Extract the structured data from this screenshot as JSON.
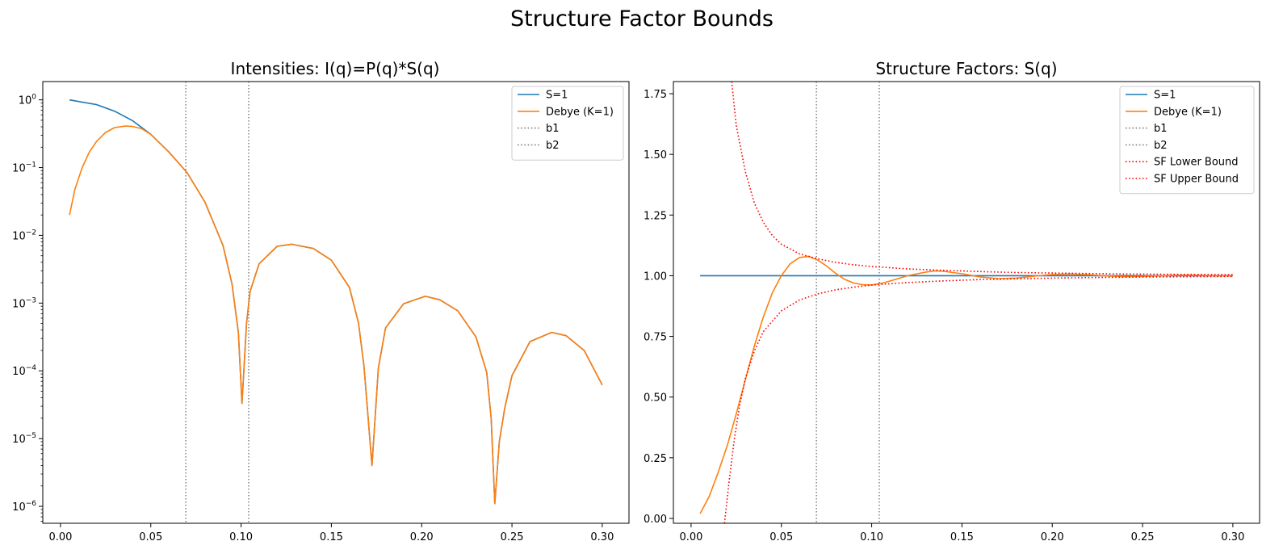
{
  "figure": {
    "title": "Structure Factor Bounds"
  },
  "chart_data": [
    {
      "type": "line",
      "title": "Intensities: I(q)=P(q)*S(q)",
      "xlabel": "",
      "ylabel": "",
      "yscale": "log",
      "xlim": [
        -0.0098,
        0.3148
      ],
      "ylim_log10": [
        -6.25,
        0.27
      ],
      "xticks": [
        0.0,
        0.05,
        0.1,
        0.15,
        0.2,
        0.25,
        0.3
      ],
      "xtick_labels": [
        "0.00",
        "0.05",
        "0.10",
        "0.15",
        "0.20",
        "0.25",
        "0.30"
      ],
      "yticks_log10": [
        0,
        -1,
        -2,
        -3,
        -4,
        -5,
        -6
      ],
      "ytick_bases": [
        "10",
        "10",
        "10",
        "10",
        "10",
        "10",
        "10"
      ],
      "ytick_exponents": [
        "0",
        "−1",
        "−2",
        "−3",
        "−4",
        "−5",
        "−6"
      ],
      "grid": false,
      "legend_position": "top-right",
      "vlines": [
        {
          "name": "b1",
          "x": 0.0694,
          "color": "#808080",
          "style": "dotted"
        },
        {
          "name": "b2",
          "x": 0.1042,
          "color": "#808080",
          "style": "dotted"
        }
      ],
      "series": [
        {
          "name": "S=1",
          "color": "#1f77b4",
          "style": "solid",
          "points": [
            [
              0.005,
              1.0
            ],
            [
              0.02,
              0.85
            ],
            [
              0.03,
              0.68
            ],
            [
              0.04,
              0.49
            ],
            [
              0.05,
              0.31
            ],
            [
              0.06,
              0.17
            ],
            [
              0.07,
              0.085
            ],
            [
              0.08,
              0.031
            ],
            [
              0.09,
              0.0071
            ],
            [
              0.095,
              0.0019
            ],
            [
              0.0985,
              0.00037
            ],
            [
              0.1005,
              3.3e-05
            ],
            [
              0.103,
              0.0005
            ],
            [
              0.105,
              0.0015
            ],
            [
              0.11,
              0.0038
            ],
            [
              0.12,
              0.0069
            ],
            [
              0.128,
              0.0074
            ],
            [
              0.14,
              0.0064
            ],
            [
              0.15,
              0.0043
            ],
            [
              0.16,
              0.0017
            ],
            [
              0.165,
              0.00051
            ],
            [
              0.168,
              0.00012
            ],
            [
              0.1725,
              4e-06
            ],
            [
              0.176,
              0.00011
            ],
            [
              0.18,
              0.00043
            ],
            [
              0.19,
              0.00098
            ],
            [
              0.202,
              0.00126
            ],
            [
              0.21,
              0.00112
            ],
            [
              0.22,
              0.00077
            ],
            [
              0.23,
              0.00032
            ],
            [
              0.236,
              9.5e-05
            ],
            [
              0.2385,
              2e-05
            ],
            [
              0.2405,
              1.1e-06
            ],
            [
              0.243,
              9e-06
            ],
            [
              0.246,
              2.8e-05
            ],
            [
              0.25,
              8.5e-05
            ],
            [
              0.26,
              0.00027
            ],
            [
              0.272,
              0.00037
            ],
            [
              0.28,
              0.00033
            ],
            [
              0.29,
              0.0002
            ],
            [
              0.3,
              6.2e-05
            ]
          ]
        },
        {
          "name": "Debye (K=1)",
          "color": "#ff7f0e",
          "style": "solid",
          "points": [
            [
              0.005,
              0.02
            ],
            [
              0.008,
              0.048
            ],
            [
              0.012,
              0.1
            ],
            [
              0.016,
              0.17
            ],
            [
              0.02,
              0.245
            ],
            [
              0.025,
              0.33
            ],
            [
              0.03,
              0.39
            ],
            [
              0.036,
              0.41
            ],
            [
              0.04,
              0.405
            ],
            [
              0.045,
              0.375
            ],
            [
              0.05,
              0.31
            ],
            [
              0.06,
              0.17
            ],
            [
              0.07,
              0.085
            ],
            [
              0.08,
              0.031
            ],
            [
              0.09,
              0.0071
            ],
            [
              0.095,
              0.0019
            ],
            [
              0.0985,
              0.00037
            ],
            [
              0.1005,
              3.3e-05
            ],
            [
              0.103,
              0.0005
            ],
            [
              0.105,
              0.0015
            ],
            [
              0.11,
              0.0038
            ],
            [
              0.12,
              0.0069
            ],
            [
              0.128,
              0.0074
            ],
            [
              0.14,
              0.0064
            ],
            [
              0.15,
              0.0043
            ],
            [
              0.16,
              0.0017
            ],
            [
              0.165,
              0.00051
            ],
            [
              0.168,
              0.00012
            ],
            [
              0.1725,
              4e-06
            ],
            [
              0.176,
              0.00011
            ],
            [
              0.18,
              0.00043
            ],
            [
              0.19,
              0.00098
            ],
            [
              0.202,
              0.00126
            ],
            [
              0.21,
              0.00112
            ],
            [
              0.22,
              0.00077
            ],
            [
              0.23,
              0.00032
            ],
            [
              0.236,
              9.5e-05
            ],
            [
              0.2385,
              2e-05
            ],
            [
              0.2405,
              1.1e-06
            ],
            [
              0.243,
              9e-06
            ],
            [
              0.246,
              2.8e-05
            ],
            [
              0.25,
              8.5e-05
            ],
            [
              0.26,
              0.00027
            ],
            [
              0.272,
              0.00037
            ],
            [
              0.28,
              0.00033
            ],
            [
              0.29,
              0.0002
            ],
            [
              0.3,
              6.2e-05
            ]
          ]
        }
      ]
    },
    {
      "type": "line",
      "title": "Structure Factors: S(q)",
      "xlabel": "",
      "ylabel": "",
      "yscale": "linear",
      "xlim": [
        -0.0098,
        0.3148
      ],
      "ylim": [
        -0.02,
        1.8
      ],
      "xticks": [
        0.0,
        0.05,
        0.1,
        0.15,
        0.2,
        0.25,
        0.3
      ],
      "xtick_labels": [
        "0.00",
        "0.05",
        "0.10",
        "0.15",
        "0.20",
        "0.25",
        "0.30"
      ],
      "yticks": [
        0.0,
        0.25,
        0.5,
        0.75,
        1.0,
        1.25,
        1.5,
        1.75
      ],
      "ytick_labels": [
        "0.00",
        "0.25",
        "0.50",
        "0.75",
        "1.00",
        "1.25",
        "1.50",
        "1.75"
      ],
      "grid": false,
      "legend_position": "top-right",
      "vlines": [
        {
          "name": "b1",
          "x": 0.0694,
          "color": "#808080",
          "style": "dotted"
        },
        {
          "name": "b2",
          "x": 0.1042,
          "color": "#808080",
          "style": "dotted"
        }
      ],
      "series": [
        {
          "name": "S=1",
          "color": "#1f77b4",
          "style": "solid",
          "points": [
            [
              0.005,
              1.0
            ],
            [
              0.3,
              1.0
            ]
          ]
        },
        {
          "name": "Debye (K=1)",
          "color": "#ff7f0e",
          "style": "solid",
          "points": [
            [
              0.005,
              0.02
            ],
            [
              0.01,
              0.09
            ],
            [
              0.015,
              0.19
            ],
            [
              0.02,
              0.3
            ],
            [
              0.025,
              0.43
            ],
            [
              0.03,
              0.57
            ],
            [
              0.035,
              0.71
            ],
            [
              0.04,
              0.83
            ],
            [
              0.045,
              0.93
            ],
            [
              0.05,
              1.0
            ],
            [
              0.055,
              1.05
            ],
            [
              0.06,
              1.075
            ],
            [
              0.065,
              1.08
            ],
            [
              0.07,
              1.065
            ],
            [
              0.075,
              1.04
            ],
            [
              0.08,
              1.01
            ],
            [
              0.085,
              0.985
            ],
            [
              0.09,
              0.97
            ],
            [
              0.095,
              0.963
            ],
            [
              0.1,
              0.962
            ],
            [
              0.105,
              0.968
            ],
            [
              0.11,
              0.978
            ],
            [
              0.12,
              1.0
            ],
            [
              0.13,
              1.015
            ],
            [
              0.135,
              1.02
            ],
            [
              0.14,
              1.018
            ],
            [
              0.15,
              1.008
            ],
            [
              0.16,
              0.995
            ],
            [
              0.17,
              0.988
            ],
            [
              0.18,
              0.99
            ],
            [
              0.19,
              0.998
            ],
            [
              0.2,
              1.005
            ],
            [
              0.21,
              1.007
            ],
            [
              0.22,
              1.004
            ],
            [
              0.23,
              0.999
            ],
            [
              0.24,
              0.996
            ],
            [
              0.25,
              0.997
            ],
            [
              0.26,
              1.0
            ],
            [
              0.27,
              1.002
            ],
            [
              0.28,
              1.002
            ],
            [
              0.29,
              1.0
            ],
            [
              0.3,
              0.999
            ]
          ]
        },
        {
          "name": "SF Lower Bound",
          "color": "#ff0000",
          "style": "dotted",
          "points": [
            [
              0.0185,
              -0.02
            ],
            [
              0.021,
              0.15
            ],
            [
              0.024,
              0.33
            ],
            [
              0.027,
              0.47
            ],
            [
              0.03,
              0.575
            ],
            [
              0.035,
              0.69
            ],
            [
              0.04,
              0.77
            ],
            [
              0.05,
              0.855
            ],
            [
              0.06,
              0.9
            ],
            [
              0.07,
              0.925
            ],
            [
              0.08,
              0.942
            ],
            [
              0.09,
              0.953
            ],
            [
              0.1,
              0.962
            ],
            [
              0.12,
              0.972
            ],
            [
              0.14,
              0.979
            ],
            [
              0.16,
              0.984
            ],
            [
              0.18,
              0.987
            ],
            [
              0.2,
              0.99
            ],
            [
              0.22,
              0.992
            ],
            [
              0.24,
              0.994
            ],
            [
              0.26,
              0.995
            ],
            [
              0.28,
              0.996
            ],
            [
              0.3,
              0.997
            ]
          ]
        },
        {
          "name": "SF Upper Bound",
          "color": "#ff0000",
          "style": "dotted",
          "points": [
            [
              0.0225,
              1.8
            ],
            [
              0.025,
              1.62
            ],
            [
              0.03,
              1.43
            ],
            [
              0.035,
              1.3
            ],
            [
              0.04,
              1.22
            ],
            [
              0.045,
              1.165
            ],
            [
              0.05,
              1.13
            ],
            [
              0.06,
              1.09
            ],
            [
              0.07,
              1.07
            ],
            [
              0.08,
              1.055
            ],
            [
              0.09,
              1.045
            ],
            [
              0.1,
              1.038
            ],
            [
              0.12,
              1.028
            ],
            [
              0.14,
              1.022
            ],
            [
              0.16,
              1.017
            ],
            [
              0.18,
              1.013
            ],
            [
              0.2,
              1.011
            ],
            [
              0.22,
              1.009
            ],
            [
              0.24,
              1.007
            ],
            [
              0.26,
              1.006
            ],
            [
              0.28,
              1.005
            ],
            [
              0.3,
              1.004
            ]
          ]
        }
      ]
    }
  ]
}
